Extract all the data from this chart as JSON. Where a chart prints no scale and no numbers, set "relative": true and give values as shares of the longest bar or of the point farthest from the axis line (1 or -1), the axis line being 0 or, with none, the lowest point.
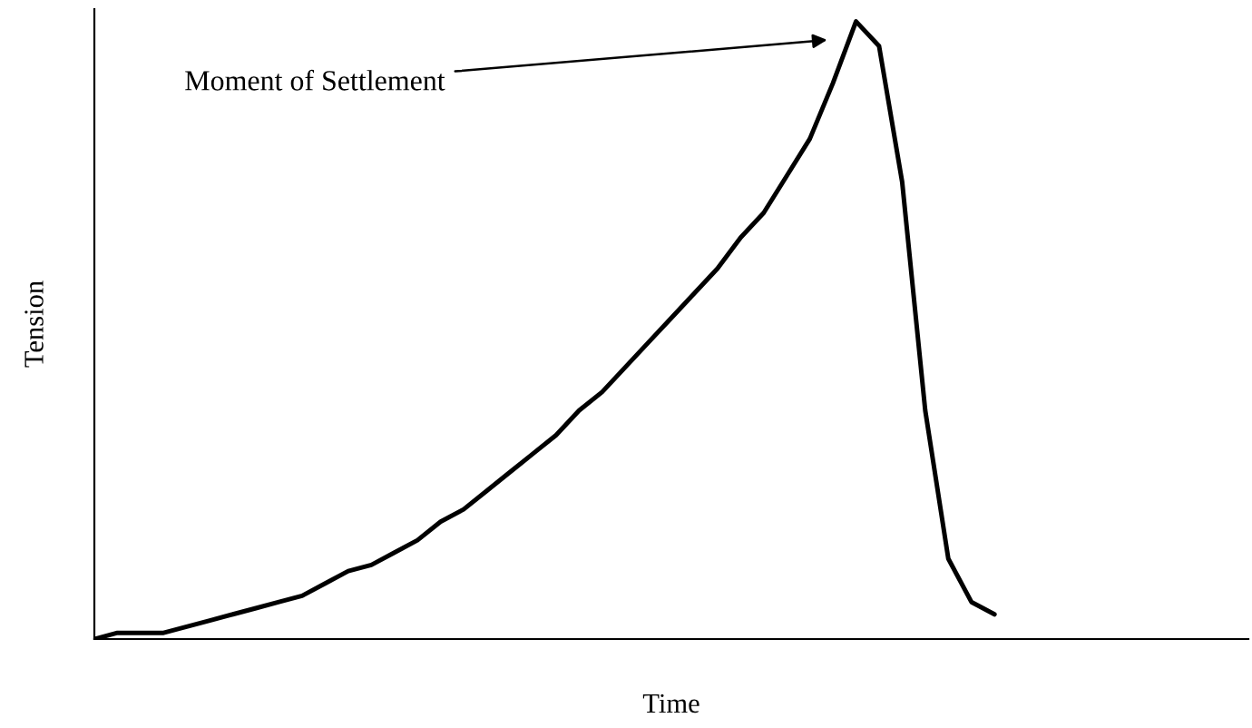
{
  "chart_data": {
    "type": "line",
    "relative": true,
    "xlabel": "Time",
    "ylabel": "Tension",
    "annotations": [
      "Moment of Settlement"
    ],
    "categories": [
      null,
      null,
      null,
      null,
      null,
      null,
      null,
      null,
      null,
      null,
      null,
      null,
      null,
      null,
      null,
      null,
      null,
      null,
      null,
      null,
      null,
      null,
      null,
      null,
      null,
      null,
      null,
      null,
      null,
      null,
      null,
      null,
      null,
      null,
      null,
      null,
      null,
      null,
      null,
      null,
      null,
      null,
      null,
      null,
      null,
      null,
      null,
      null,
      null,
      null,
      null
    ],
    "series": [
      {
        "color": "#000000",
        "values": [
          0,
          0.01,
          0.01,
          0.01,
          0.02,
          0.03,
          0.04,
          0.05,
          0.06,
          0.07,
          0.09,
          0.11,
          0.12,
          0.14,
          0.16,
          0.19,
          0.21,
          0.24,
          0.27,
          0.3,
          0.33,
          0.37,
          0.4,
          0.44,
          0.48,
          0.52,
          0.56,
          0.6,
          0.65,
          0.69,
          0.75,
          0.81,
          0.9,
          1,
          0.96,
          0.74,
          0.37,
          0.13,
          0.06,
          0.04,
          null,
          null,
          null,
          null,
          null,
          null,
          null,
          null,
          null,
          null,
          null
        ]
      }
    ],
    "grid": false,
    "legend": false,
    "marker": "none",
    "line_style": "solid"
  }
}
